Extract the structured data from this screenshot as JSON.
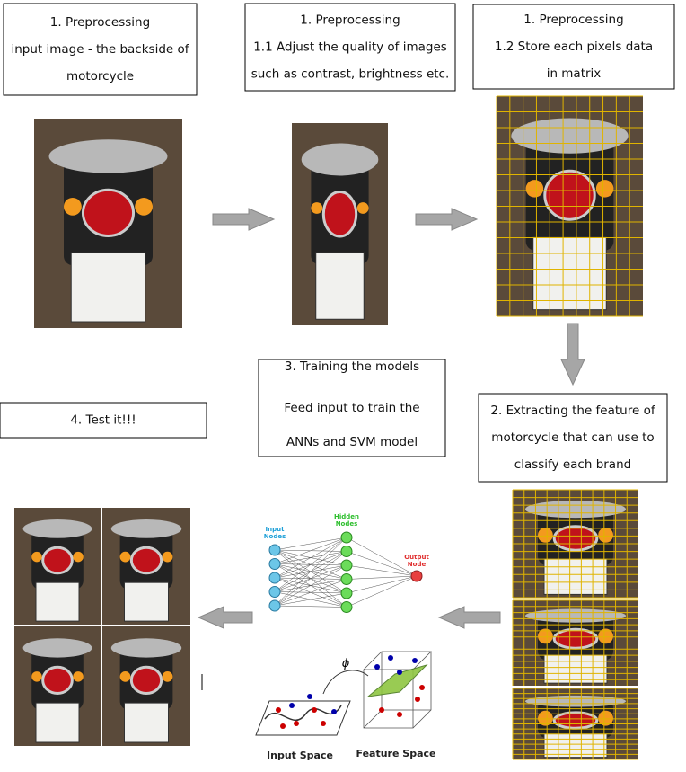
{
  "boxes": [
    {
      "lines": [
        "1. Preprocessing",
        "input image - the backside of",
        "motorcycle"
      ]
    },
    {
      "lines": [
        "1. Preprocessing",
        "1.1 Adjust the quality of images",
        "such as contrast, brightness etc."
      ]
    },
    {
      "lines": [
        "1. Preprocessing",
        "1.2 Store each pixels data",
        "in matrix"
      ]
    },
    {
      "lines": [
        "2. Extracting the feature of",
        "motorcycle that can use to",
        "classify each brand"
      ]
    },
    {
      "lines": [
        "3. Training the models",
        "Feed input to train the",
        "ANNs and SVM model"
      ]
    },
    {
      "lines": [
        "4. Test it!!!"
      ]
    }
  ],
  "ann": {
    "input_label": [
      "Input",
      "Nodes"
    ],
    "hidden_label": [
      "Hidden",
      "Nodes"
    ],
    "output_label": [
      "Output",
      "Node"
    ]
  },
  "svm": {
    "phi": "ϕ",
    "input_space": "Input Space",
    "feature_space": "Feature Space"
  }
}
